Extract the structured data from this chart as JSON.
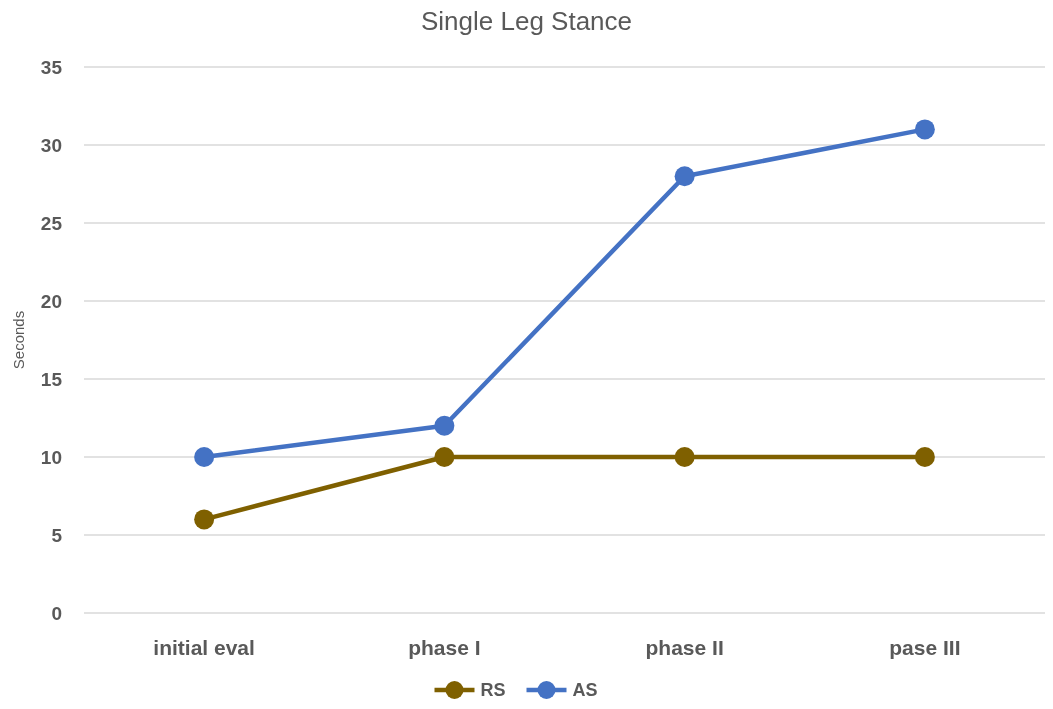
{
  "chart_data": {
    "type": "line",
    "title": "Single Leg Stance",
    "ylabel": "Seconds",
    "categories": [
      "initial eval",
      "phase I",
      "phase II",
      "pase III"
    ],
    "series": [
      {
        "name": "RS",
        "color": "#7f6000",
        "values": [
          6,
          10,
          10,
          10
        ]
      },
      {
        "name": "AS",
        "color": "#4472c4",
        "values": [
          10,
          12,
          28,
          31
        ]
      }
    ],
    "ylim": [
      0,
      35
    ],
    "yticks": [
      0,
      5,
      10,
      15,
      20,
      25,
      30,
      35
    ],
    "grid": "y",
    "legend": "bottom",
    "marker": "circle",
    "line_style": "solid"
  }
}
